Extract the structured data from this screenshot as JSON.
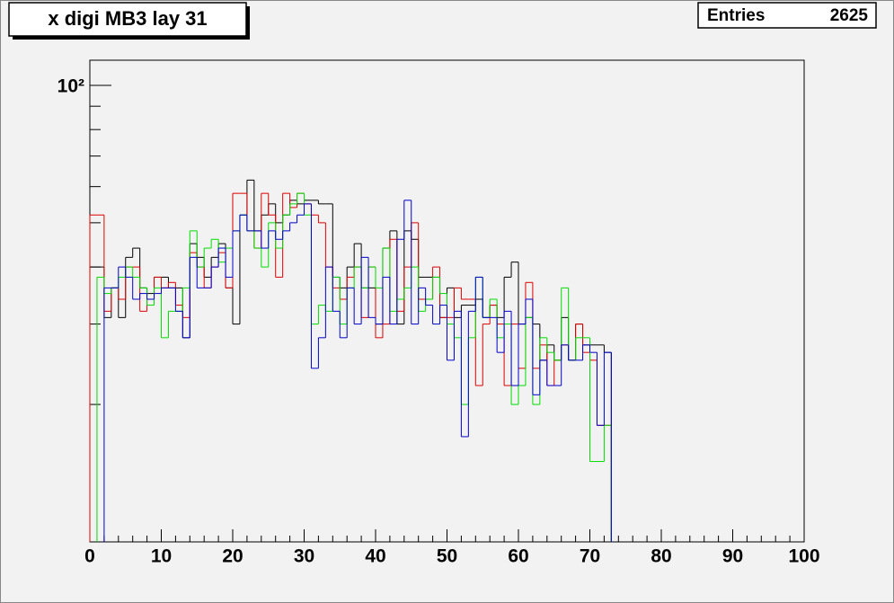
{
  "chart_data": {
    "type": "histogram-step",
    "title": "x digi MB3 lay 31",
    "stats": {
      "label": "Entries",
      "value": 2625
    },
    "log_y": true,
    "bins": [
      0,
      1,
      2,
      3,
      4,
      5,
      6,
      7,
      8,
      9,
      10,
      11,
      12,
      13,
      14,
      15,
      16,
      17,
      18,
      19,
      20,
      21,
      22,
      23,
      24,
      25,
      26,
      27,
      28,
      29,
      30,
      31,
      32,
      33,
      34,
      35,
      36,
      37,
      38,
      39,
      40,
      41,
      42,
      43,
      44,
      45,
      46,
      47,
      48,
      49,
      50,
      51,
      52,
      53,
      54,
      55,
      56,
      57,
      58,
      59,
      60,
      61,
      62,
      63,
      64,
      65,
      66,
      67,
      68,
      69,
      70,
      71,
      72,
      73
    ],
    "series": [
      {
        "color": "#000000",
        "values": [
          40,
          40,
          31,
          36,
          31,
          42,
          44,
          36,
          35,
          38,
          38,
          36,
          36,
          28,
          45,
          42,
          38,
          42,
          45,
          36,
          30,
          52,
          62,
          48,
          52,
          55,
          50,
          52,
          56,
          55,
          56,
          56,
          55,
          55,
          38,
          36,
          40,
          45,
          36,
          36,
          30,
          44,
          48,
          30,
          48,
          46,
          38,
          38,
          38,
          31,
          36,
          31,
          33,
          33,
          34,
          31,
          33,
          31,
          38,
          41,
          30,
          31,
          30,
          25,
          27,
          25,
          31,
          25,
          30,
          27,
          27,
          27,
          26
        ]
      },
      {
        "color": "#dd0000",
        "values": [
          52,
          52,
          32,
          36,
          34,
          40,
          40,
          32,
          34,
          38,
          36,
          37,
          33,
          31,
          43,
          40,
          36,
          40,
          43,
          36,
          58,
          58,
          48,
          44,
          58,
          52,
          38,
          58,
          54,
          58,
          55,
          52,
          50,
          40,
          36,
          34,
          38,
          40,
          31,
          40,
          28,
          30,
          46,
          32,
          40,
          50,
          34,
          34,
          40,
          31,
          31,
          36,
          34,
          34,
          22,
          30,
          33,
          30,
          22,
          30,
          24,
          37,
          24,
          27,
          22,
          25,
          27,
          25,
          30,
          26,
          25,
          18,
          18
        ]
      },
      {
        "color": "#00dd00",
        "values": [
          null,
          38,
          35,
          36,
          38,
          40,
          38,
          36,
          33,
          36,
          28,
          32,
          32,
          36,
          48,
          40,
          44,
          46,
          41,
          44,
          48,
          52,
          48,
          44,
          40,
          50,
          44,
          52,
          55,
          58,
          52,
          30,
          33,
          32,
          38,
          30,
          36,
          40,
          36,
          40,
          36,
          44,
          32,
          34,
          36,
          40,
          32,
          34,
          38,
          35,
          30,
          28,
          20,
          28,
          38,
          31,
          34,
          28,
          30,
          20,
          22,
          31,
          20,
          28,
          26,
          25,
          36,
          25,
          28,
          28,
          15,
          15,
          18
        ]
      },
      {
        "color": "#0000cc",
        "values": [
          null,
          null,
          36,
          36,
          40,
          38,
          34,
          35,
          34,
          35,
          36,
          36,
          32,
          28,
          42,
          36,
          36,
          40,
          44,
          38,
          48,
          52,
          48,
          48,
          44,
          48,
          46,
          48,
          50,
          52,
          55,
          24,
          28,
          40,
          32,
          28,
          36,
          30,
          42,
          31,
          30,
          38,
          30,
          46,
          56,
          30,
          36,
          33,
          30,
          33,
          25,
          32,
          17,
          32,
          38,
          31,
          31,
          26,
          32,
          22,
          30,
          34,
          21,
          25,
          22,
          22,
          27,
          25,
          25,
          27,
          26,
          18,
          26
        ]
      }
    ],
    "xlim": [
      0,
      100
    ],
    "xticks": [
      0,
      10,
      20,
      30,
      40,
      50,
      60,
      70,
      80,
      90,
      100
    ],
    "ylim": [
      10,
      113.5
    ],
    "yticks": [
      {
        "value": 100,
        "label": "10²"
      }
    ],
    "yminorticks": [
      20,
      30,
      40,
      50,
      60,
      70,
      80,
      90
    ]
  }
}
